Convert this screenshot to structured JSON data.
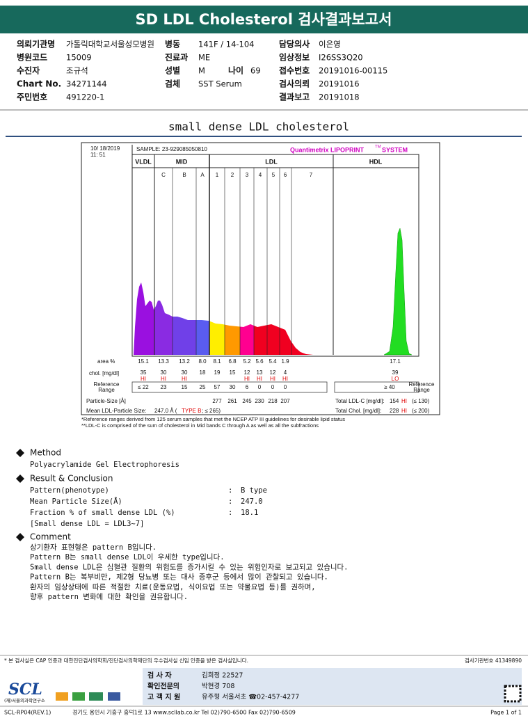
{
  "header": {
    "title": "SD LDL Cholesterol 검사결과보고서"
  },
  "info": {
    "rows": [
      [
        {
          "label": "의뢰기관명",
          "value": "가톨릭대학교서울성모병원"
        },
        {
          "label": "병동",
          "value": "141F / 14-104"
        },
        {
          "label": "담당의사",
          "value": "이은영"
        }
      ],
      [
        {
          "label": "병원코드",
          "value": "15009"
        },
        {
          "label": "진료과",
          "value": "ME"
        },
        {
          "label": "임상정보",
          "value": "I26SS3Q20"
        }
      ],
      [
        {
          "label": "수진자",
          "value": "조규석"
        },
        {
          "label": "성별",
          "value": "M"
        },
        {
          "label": "나이",
          "value": "69"
        },
        {
          "label": "접수번호",
          "value": "20191016-00115"
        }
      ],
      [
        {
          "label": "Chart No.",
          "value": "34271144"
        },
        {
          "label": "검체",
          "value": "SST Serum"
        },
        {
          "label": "검사의뢰",
          "value": "20191016"
        }
      ],
      [
        {
          "label": "주민번호",
          "value": "491220-1"
        },
        {
          "label": "결과보고",
          "value": "20191018"
        }
      ]
    ]
  },
  "section_title": "small dense LDL cholesterol",
  "lipoprint": {
    "date": "10/ 18/2019",
    "time": "11: 51",
    "sample": "SAMPLE:   23-929085050810",
    "brand": "Quantimetrix LIPOPRINT",
    "brand_tm": "TM",
    "brand_system": "SYSTEM",
    "groups": {
      "vldl": "VLDL",
      "mid": "MID",
      "ldl": "LDL",
      "hdl": "HDL"
    },
    "bands": [
      "C",
      "B",
      "A",
      "1",
      "2",
      "3",
      "4",
      "5",
      "6",
      "7"
    ],
    "area_label": "area %",
    "chol_label": "chol. [mg/dl]",
    "reference_label": [
      "Reference",
      "Range"
    ],
    "area": [
      "15.1",
      "13.3",
      "13.2",
      "8.0",
      "8.1",
      "6.8",
      "5.2",
      "5.6",
      "5.4",
      "1.9"
    ],
    "chol": [
      "35",
      "30",
      "30",
      "18",
      "19",
      "15",
      "12",
      "13",
      "12",
      "4"
    ],
    "flags": [
      "HI",
      "HI",
      "HI",
      null,
      null,
      null,
      "HI",
      "HI",
      "HI",
      "HI"
    ],
    "reference": [
      "≤ 22",
      "23",
      "15",
      "25",
      "57",
      "30",
      "6",
      "0",
      "0",
      "0"
    ],
    "particle_label": "Particle-Size [Å]",
    "particle_size": [
      "277",
      "261",
      "245",
      "230",
      "218",
      "207"
    ],
    "hdl": {
      "area": "17.1",
      "chol": "39",
      "flag": "LO",
      "reference": "≥ 40"
    },
    "mean": {
      "label": "Mean LDL-Particle Size:",
      "value": "247.0 Å (",
      "type": "TYPE B",
      "limit": "; ≤ 265)"
    },
    "total_ldl": {
      "label": "Total LDL-C [mg/dl]:",
      "value": "154",
      "flag": "HI",
      "limit": "(≤ 130)"
    },
    "total_chol": {
      "label": "Total Chol. [mg/dl]:",
      "value": "228",
      "flag": "HI",
      "limit": "(≤ 200)"
    },
    "footnotes": [
      "*Reference ranges derived from 125 serum samples that met the NCEP ATP III guidelines for desirable lipid status",
      "**LDL-C is comprised of the sum of cholesterol in Mid bands C through A as well as all the subfractions"
    ]
  },
  "method": {
    "title": "Method",
    "text": "Polyacrylamide Gel Electrophoresis"
  },
  "result": {
    "title": "Result & Conclusion",
    "separator": ":",
    "rows": [
      {
        "label": "Pattern(phenotype)",
        "value": "B type"
      },
      {
        "label": "Mean Particle Size(Å)",
        "value": "247.0"
      },
      {
        "label": "Fraction % of small dense LDL (%)",
        "value": "18.1"
      }
    ],
    "note": "[Small dense LDL = LDL3~7]"
  },
  "comment": {
    "title": "Comment",
    "lines": [
      "상기환자 표현형은 pattern B입니다.",
      "Pattern B는 small dense LDL이 우세한 type입니다.",
      "Small dense LDL은 심혈관 질환의 위험도를 증가시킬 수 있는 위험인자로 보고되고 있습니다.",
      "Pattern B는 복부비만, 제2형 당뇨병 또는 대사 증후군 등에서 많이 관찰되고 있습니다.",
      "환자의 임상상태에 따른 적절한 치료(운동요법, 식이요법 또는 약물요법 등)를 권하며,",
      "향후 pattern 변화에 대한 확인을 권유합니다."
    ]
  },
  "footer": {
    "disclaimer": "* 본 검사실은 CAP 인증과 대한진단검사의학회/진단검사의학재단의 우수검사실 신임 인증을 받은 검사실입니다.",
    "institution_no": "검사기관번호 41349890",
    "logo": "SCL",
    "logo_sub": "(재)서울의과학연구소",
    "staff": [
      {
        "label": "검 사 자",
        "value": "김희정 22527"
      },
      {
        "label": "확인전문의",
        "value": "박현경 708"
      },
      {
        "label": "고 객 지 원",
        "value": "유주형 서울서초 ☎02-457-4277"
      }
    ],
    "form_code": "SCL-RP04(REV.1)",
    "address": "경기도 용인시 기흥구 흥덕1로 13   www.scllab.co.kr  Tel 02)790-6500  Fax 02)790-6509",
    "page": "Page 1 of 1"
  }
}
